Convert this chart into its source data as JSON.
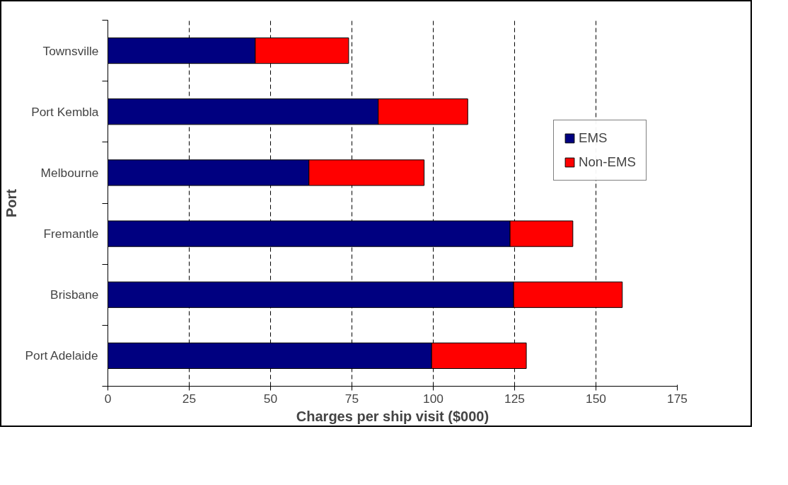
{
  "chart_data": {
    "type": "bar",
    "orientation": "horizontal",
    "stacked": true,
    "xlabel": "Charges per ship visit ($000)",
    "ylabel": "Port",
    "categories": [
      "Townsville",
      "Port Kembla",
      "Melbourne",
      "Fremantle",
      "Brisbane",
      "Port Adelaide"
    ],
    "series": [
      {
        "name": "EMS",
        "color": "#000080",
        "values": [
          45.3,
          83.1,
          61.8,
          123.6,
          124.7,
          99.5
        ]
      },
      {
        "name": "Non-EMS",
        "color": "#ff0000",
        "values": [
          28.7,
          27.5,
          35.4,
          19.3,
          33.4,
          29.1
        ]
      }
    ],
    "xlim": [
      0,
      175
    ],
    "xticks": [
      0,
      25,
      50,
      75,
      100,
      125,
      150,
      175
    ],
    "grid": "x",
    "legend": "right"
  }
}
